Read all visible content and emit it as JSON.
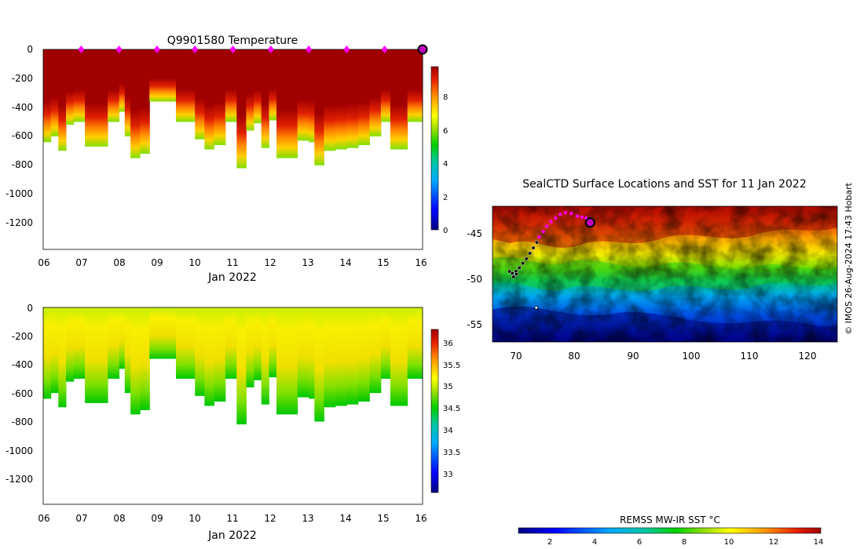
{
  "chart_data": [
    {
      "type": "heatmap",
      "title": "Q9901580  Temperature",
      "xlabel": "Jan 2022",
      "x_ticks": [
        "06",
        "07",
        "08",
        "09",
        "10",
        "11",
        "12",
        "13",
        "14",
        "15",
        "16"
      ],
      "y_ticks": [
        "0",
        "-200",
        "-400",
        "-600",
        "-800",
        "-1000",
        "-1200"
      ],
      "xlim_days": [
        6,
        16
      ],
      "ylim": [
        -1380,
        0
      ],
      "colorbar": {
        "ticks": [
          "0",
          "2",
          "4",
          "6",
          "8"
        ],
        "range": [
          0,
          9.8
        ]
      },
      "surface_markers_days": [
        7,
        8,
        9,
        10,
        11,
        12,
        13,
        14,
        15
      ],
      "latest_marker_day": 16,
      "profiles": [
        {
          "day": 6.0,
          "depth": 640
        },
        {
          "day": 6.2,
          "depth": 600
        },
        {
          "day": 6.4,
          "depth": 700
        },
        {
          "day": 6.6,
          "depth": 520
        },
        {
          "day": 6.8,
          "depth": 500
        },
        {
          "day": 7.1,
          "depth": 670
        },
        {
          "day": 7.4,
          "depth": 670
        },
        {
          "day": 7.7,
          "depth": 500
        },
        {
          "day": 8.0,
          "depth": 430
        },
        {
          "day": 8.15,
          "depth": 600
        },
        {
          "day": 8.3,
          "depth": 750
        },
        {
          "day": 8.55,
          "depth": 720
        },
        {
          "day": 8.8,
          "depth": 360
        },
        {
          "day": 9.2,
          "depth": 360
        },
        {
          "day": 9.5,
          "depth": 500
        },
        {
          "day": 9.75,
          "depth": 500
        },
        {
          "day": 10.0,
          "depth": 620
        },
        {
          "day": 10.25,
          "depth": 690
        },
        {
          "day": 10.5,
          "depth": 660
        },
        {
          "day": 10.8,
          "depth": 500
        },
        {
          "day": 11.1,
          "depth": 820
        },
        {
          "day": 11.35,
          "depth": 560
        },
        {
          "day": 11.55,
          "depth": 510
        },
        {
          "day": 11.75,
          "depth": 680
        },
        {
          "day": 11.95,
          "depth": 490
        },
        {
          "day": 12.15,
          "depth": 750
        },
        {
          "day": 12.45,
          "depth": 750
        },
        {
          "day": 12.7,
          "depth": 630
        },
        {
          "day": 13.0,
          "depth": 640
        },
        {
          "day": 13.15,
          "depth": 800
        },
        {
          "day": 13.4,
          "depth": 700
        },
        {
          "day": 13.7,
          "depth": 690
        },
        {
          "day": 14.0,
          "depth": 680
        },
        {
          "day": 14.3,
          "depth": 660
        },
        {
          "day": 14.6,
          "depth": 600
        },
        {
          "day": 14.9,
          "depth": 500
        },
        {
          "day": 15.15,
          "depth": 690
        },
        {
          "day": 15.4,
          "depth": 690
        },
        {
          "day": 15.6,
          "depth": 500
        },
        {
          "day": 15.85,
          "depth": 500
        }
      ]
    },
    {
      "type": "heatmap",
      "title": "",
      "xlabel": "Jan 2022",
      "x_ticks": [
        "06",
        "07",
        "08",
        "09",
        "10",
        "11",
        "12",
        "13",
        "14",
        "15",
        "16"
      ],
      "y_ticks": [
        "0",
        "-200",
        "-400",
        "-600",
        "-800",
        "-1000",
        "-1200"
      ],
      "xlim_days": [
        6,
        16
      ],
      "ylim": [
        -1380,
        0
      ],
      "colorbar": {
        "ticks": [
          "33",
          "33.5",
          "34",
          "34.5",
          "35",
          "35.5",
          "36"
        ],
        "range": [
          32.6,
          36.3
        ]
      }
    },
    {
      "type": "heatmap",
      "title": "SealCTD Surface Locations and SST for 11 Jan 2022",
      "x_ticks": [
        "70",
        "80",
        "90",
        "100",
        "110",
        "120"
      ],
      "y_ticks": [
        "-45",
        "-50",
        "-55"
      ],
      "xlim": [
        66,
        125
      ],
      "ylim": [
        -57,
        -42
      ],
      "colorbar_label": "REMSS MW-IR SST °C",
      "colorbar": {
        "ticks": [
          "2",
          "4",
          "6",
          "8",
          "10",
          "12",
          "14"
        ],
        "range": [
          0.7,
          14.2
        ]
      },
      "track_recent": [
        [
          79.5,
          -42.8
        ],
        [
          80.5,
          -43.1
        ],
        [
          81.3,
          -43.2
        ],
        [
          82.0,
          -43.3
        ],
        [
          78.5,
          -42.7
        ],
        [
          77.6,
          -42.9
        ],
        [
          76.8,
          -43.3
        ],
        [
          76.0,
          -43.7
        ],
        [
          75.3,
          -44.2
        ],
        [
          74.7,
          -44.8
        ],
        [
          74.0,
          -45.4
        ]
      ],
      "track_old": [
        [
          73.6,
          -46.0
        ],
        [
          73.0,
          -46.6
        ],
        [
          72.4,
          -47.2
        ],
        [
          71.8,
          -47.8
        ],
        [
          71.2,
          -48.3
        ],
        [
          70.6,
          -48.8
        ],
        [
          70.0,
          -49.2
        ],
        [
          69.4,
          -49.4
        ],
        [
          68.9,
          -49.2
        ],
        [
          69.6,
          -49.8
        ],
        [
          70.1,
          -49.5
        ]
      ],
      "latest_position": [
        82.7,
        -43.8
      ],
      "extra_point": [
        73.5,
        -53.2
      ]
    }
  ],
  "credit": "© IMOS 26-Aug-2024 17:43 Hobart"
}
